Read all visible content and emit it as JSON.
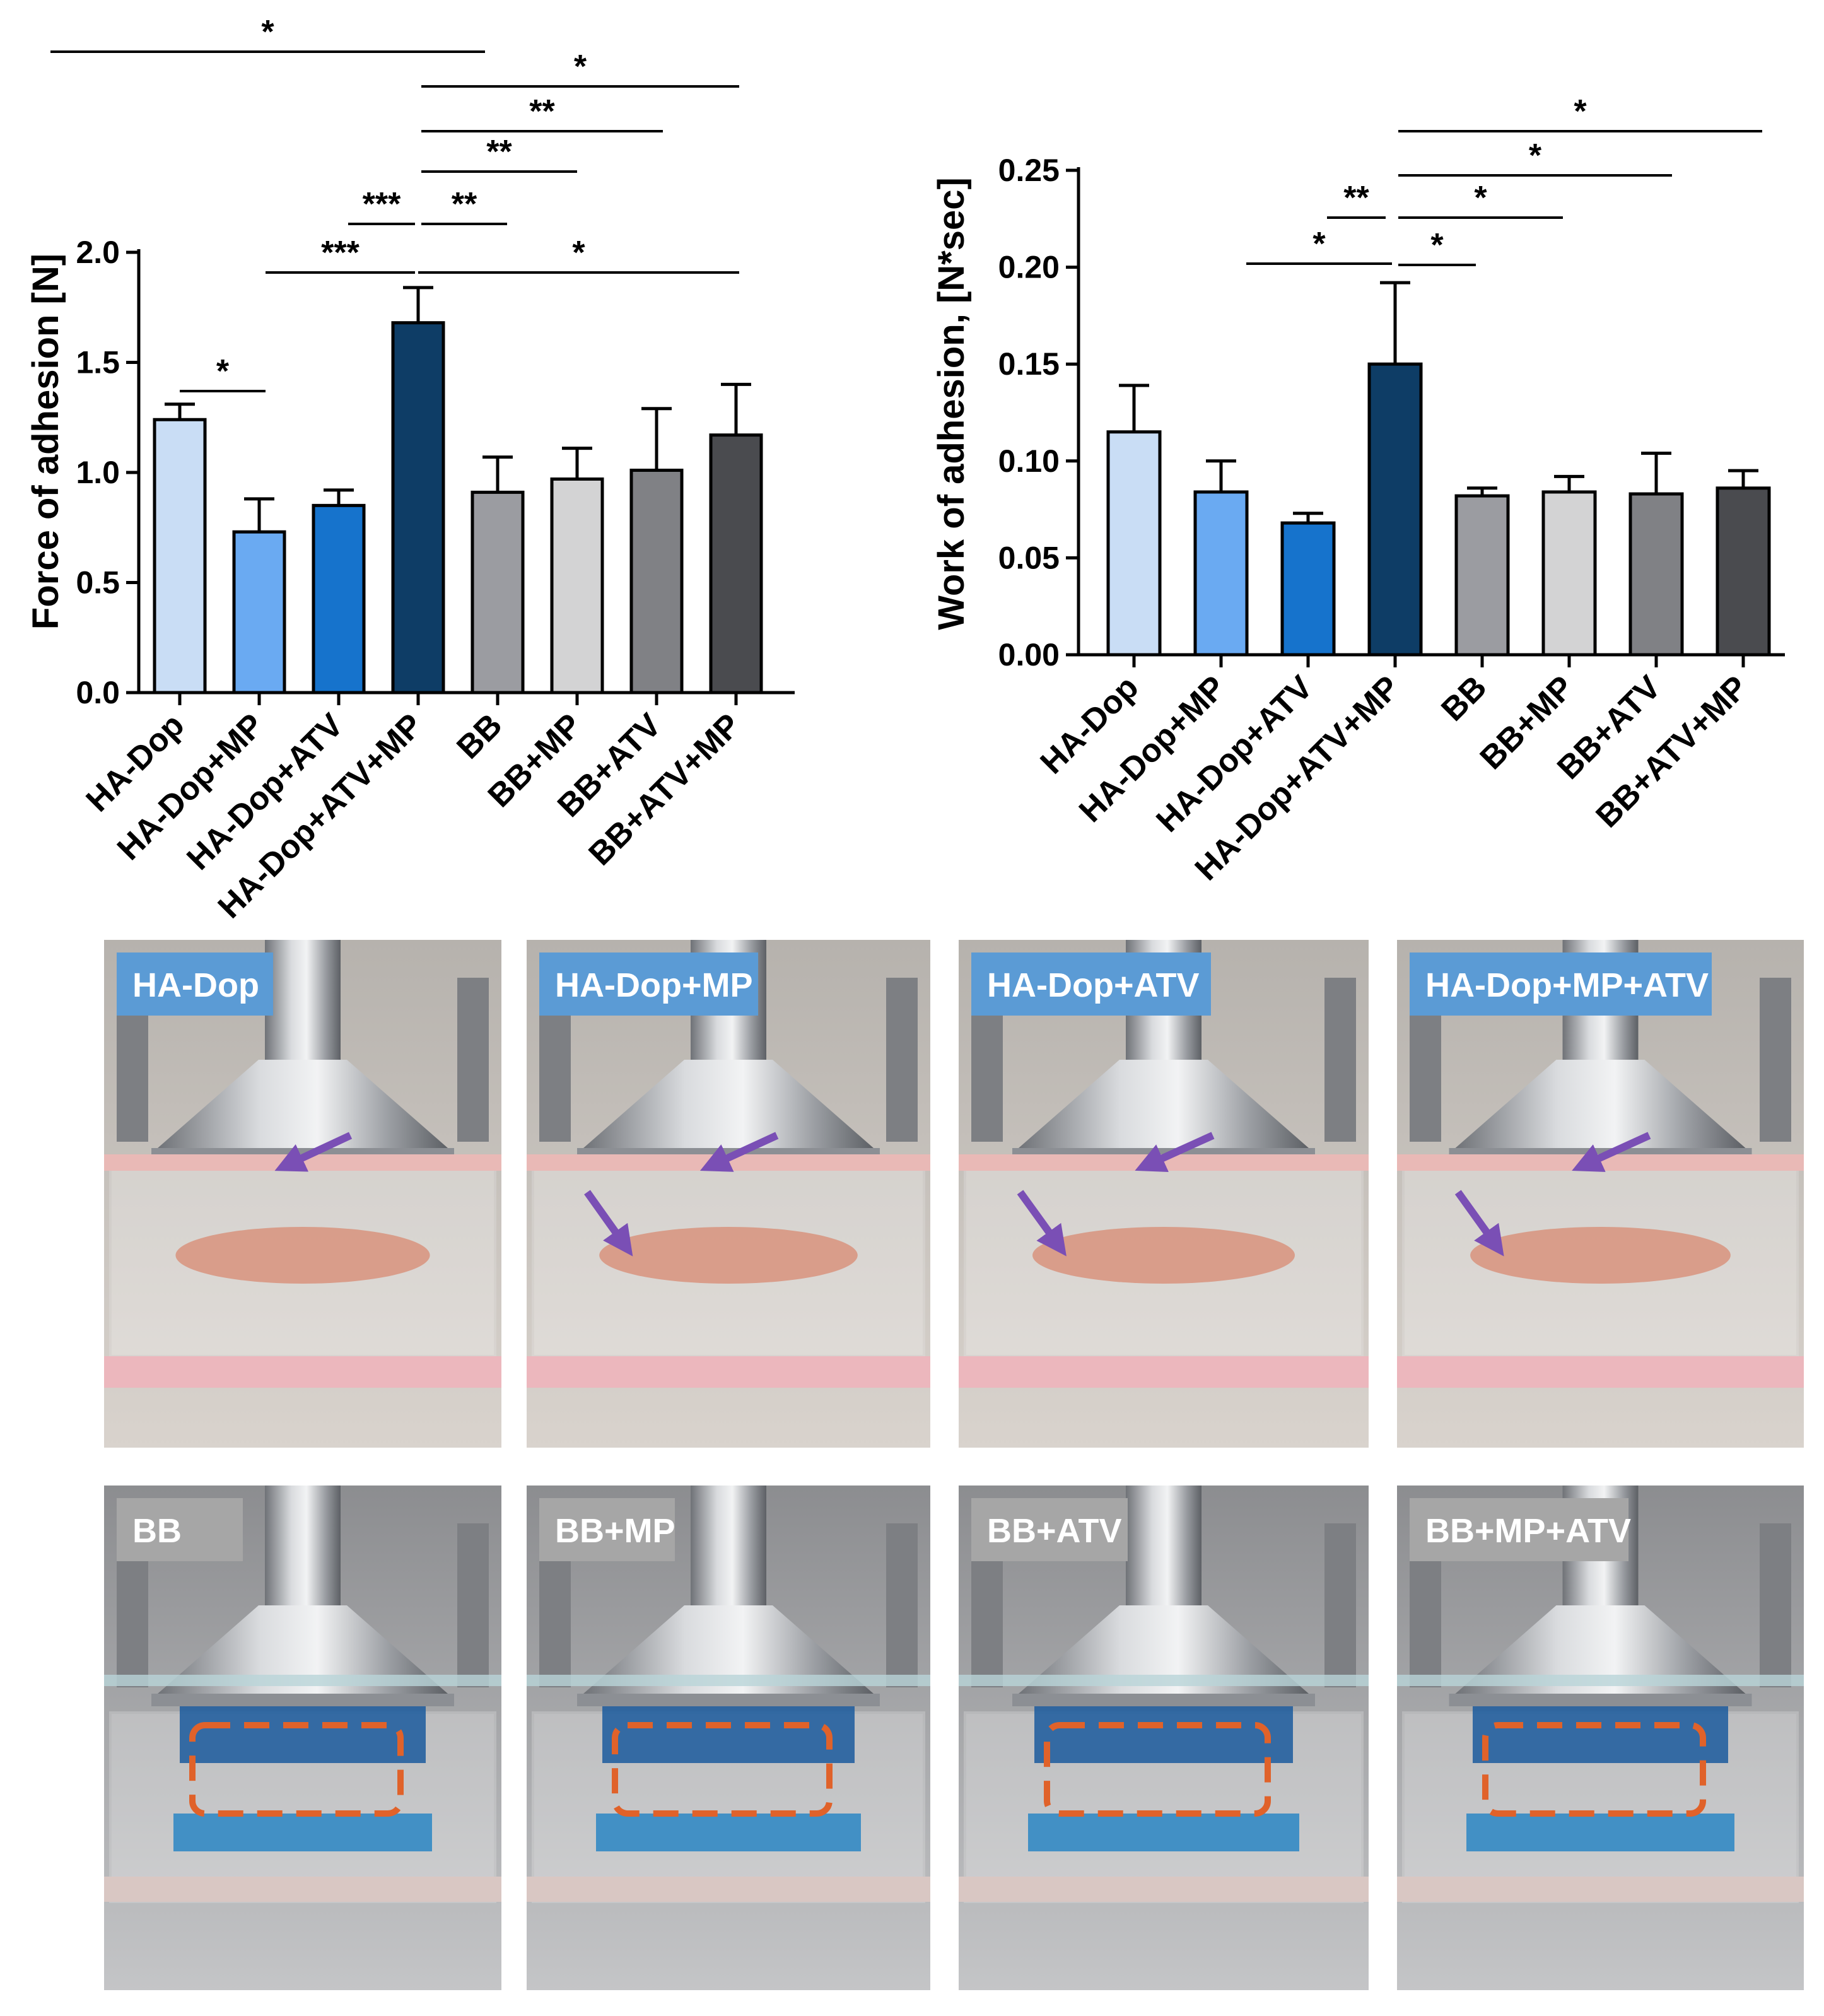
{
  "chart_data": [
    {
      "type": "bar",
      "ylabel": "Force of adhesion [N]",
      "ylim": [
        0,
        2.0
      ],
      "yticks": [
        "0.0",
        "0.5",
        "1.0",
        "1.5",
        "2.0"
      ],
      "categories": [
        "HA-Dop",
        "HA-Dop+MP",
        "HA-Dop+ATV",
        "HA-Dop+ATV+MP",
        "BB",
        "BB+MP",
        "BB+ATV",
        "BB+ATV+MP"
      ],
      "values": [
        1.24,
        0.73,
        0.85,
        1.68,
        0.91,
        0.97,
        1.01,
        1.17
      ],
      "errors": [
        0.07,
        0.15,
        0.07,
        0.16,
        0.16,
        0.14,
        0.28,
        0.23
      ],
      "colors": [
        "#c9ddf5",
        "#6aaaf2",
        "#1673cc",
        "#0e3d66",
        "#9b9ca1",
        "#d3d3d4",
        "#808185",
        "#4a4b4f"
      ],
      "significance": [
        {
          "from": 0,
          "to": 1,
          "label": "*"
        },
        {
          "from": 1,
          "to": 3,
          "label": "***"
        },
        {
          "from": 2,
          "to": 3,
          "label": "***"
        },
        {
          "from": 3,
          "to": 4,
          "label": "**"
        },
        {
          "from": 3,
          "to": 5,
          "label": "**"
        },
        {
          "from": 3,
          "to": 6,
          "label": "**"
        },
        {
          "from": 3,
          "to": 7,
          "label": "*"
        },
        {
          "from": 0,
          "to": 4,
          "label": "*"
        },
        {
          "from": 3,
          "to": 7,
          "label": "*"
        }
      ]
    },
    {
      "type": "bar",
      "ylabel": "Work of adhesion, [N*sec]",
      "ylim": [
        0,
        0.25
      ],
      "yticks": [
        "0.00",
        "0.05",
        "0.10",
        "0.15",
        "0.20",
        "0.25"
      ],
      "categories": [
        "HA-Dop",
        "HA-Dop+MP",
        "HA-Dop+ATV",
        "HA-Dop+ATV+MP",
        "BB",
        "BB+MP",
        "BB+ATV",
        "BB+ATV+MP"
      ],
      "values": [
        0.115,
        0.084,
        0.068,
        0.15,
        0.082,
        0.084,
        0.083,
        0.086
      ],
      "errors": [
        0.024,
        0.016,
        0.005,
        0.042,
        0.004,
        0.008,
        0.021,
        0.009
      ],
      "colors": [
        "#c9ddf5",
        "#6aaaf2",
        "#1673cc",
        "#0e3d66",
        "#9b9ca1",
        "#d3d3d4",
        "#808185",
        "#4a4b4f"
      ],
      "significance": [
        {
          "from": 3,
          "to": 4,
          "label": "*"
        },
        {
          "from": 1,
          "to": 3,
          "label": "*"
        },
        {
          "from": 2,
          "to": 3,
          "label": "**"
        },
        {
          "from": 3,
          "to": 5,
          "label": "*"
        },
        {
          "from": 3,
          "to": 6,
          "label": "*"
        },
        {
          "from": 3,
          "to": 7,
          "label": "*"
        }
      ]
    }
  ],
  "photos": {
    "top_row": [
      "HA-Dop",
      "HA-Dop+MP",
      "HA-Dop+ATV",
      "HA-Dop+MP+ATV"
    ],
    "bottom_row": [
      "BB",
      "BB+MP",
      "BB+ATV",
      "BB+MP+ATV"
    ],
    "top_label_color": "#5b9bd5",
    "bottom_label_color": "#a6a6a6",
    "arrow_color": "#7a4fb5",
    "outline_color": "#e0622a"
  }
}
